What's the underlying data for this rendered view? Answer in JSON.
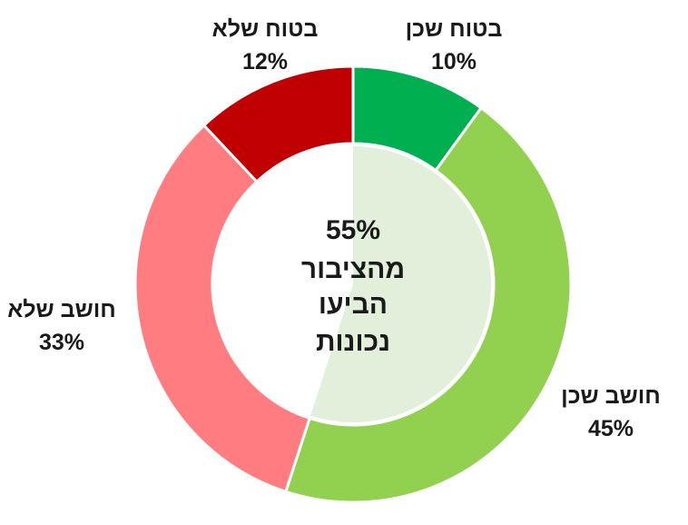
{
  "chart_data": {
    "type": "pie",
    "donut": true,
    "slices": [
      {
        "label": "בטוח שכן",
        "value": 10,
        "value_text": "10%",
        "color": "#00b050"
      },
      {
        "label": "חושב שכן",
        "value": 45,
        "value_text": "45%",
        "color": "#92d050"
      },
      {
        "label": "חושב שלא",
        "value": 33,
        "value_text": "33%",
        "color": "#ff7c80"
      },
      {
        "label": "בטוח שלא",
        "value": 12,
        "value_text": "12%",
        "color": "#c00000"
      }
    ],
    "center": {
      "value": 55,
      "value_text": "55%",
      "lines": [
        "מהציבור",
        "הביעו",
        "נכונות"
      ],
      "highlight_color": "#e2efda"
    }
  }
}
